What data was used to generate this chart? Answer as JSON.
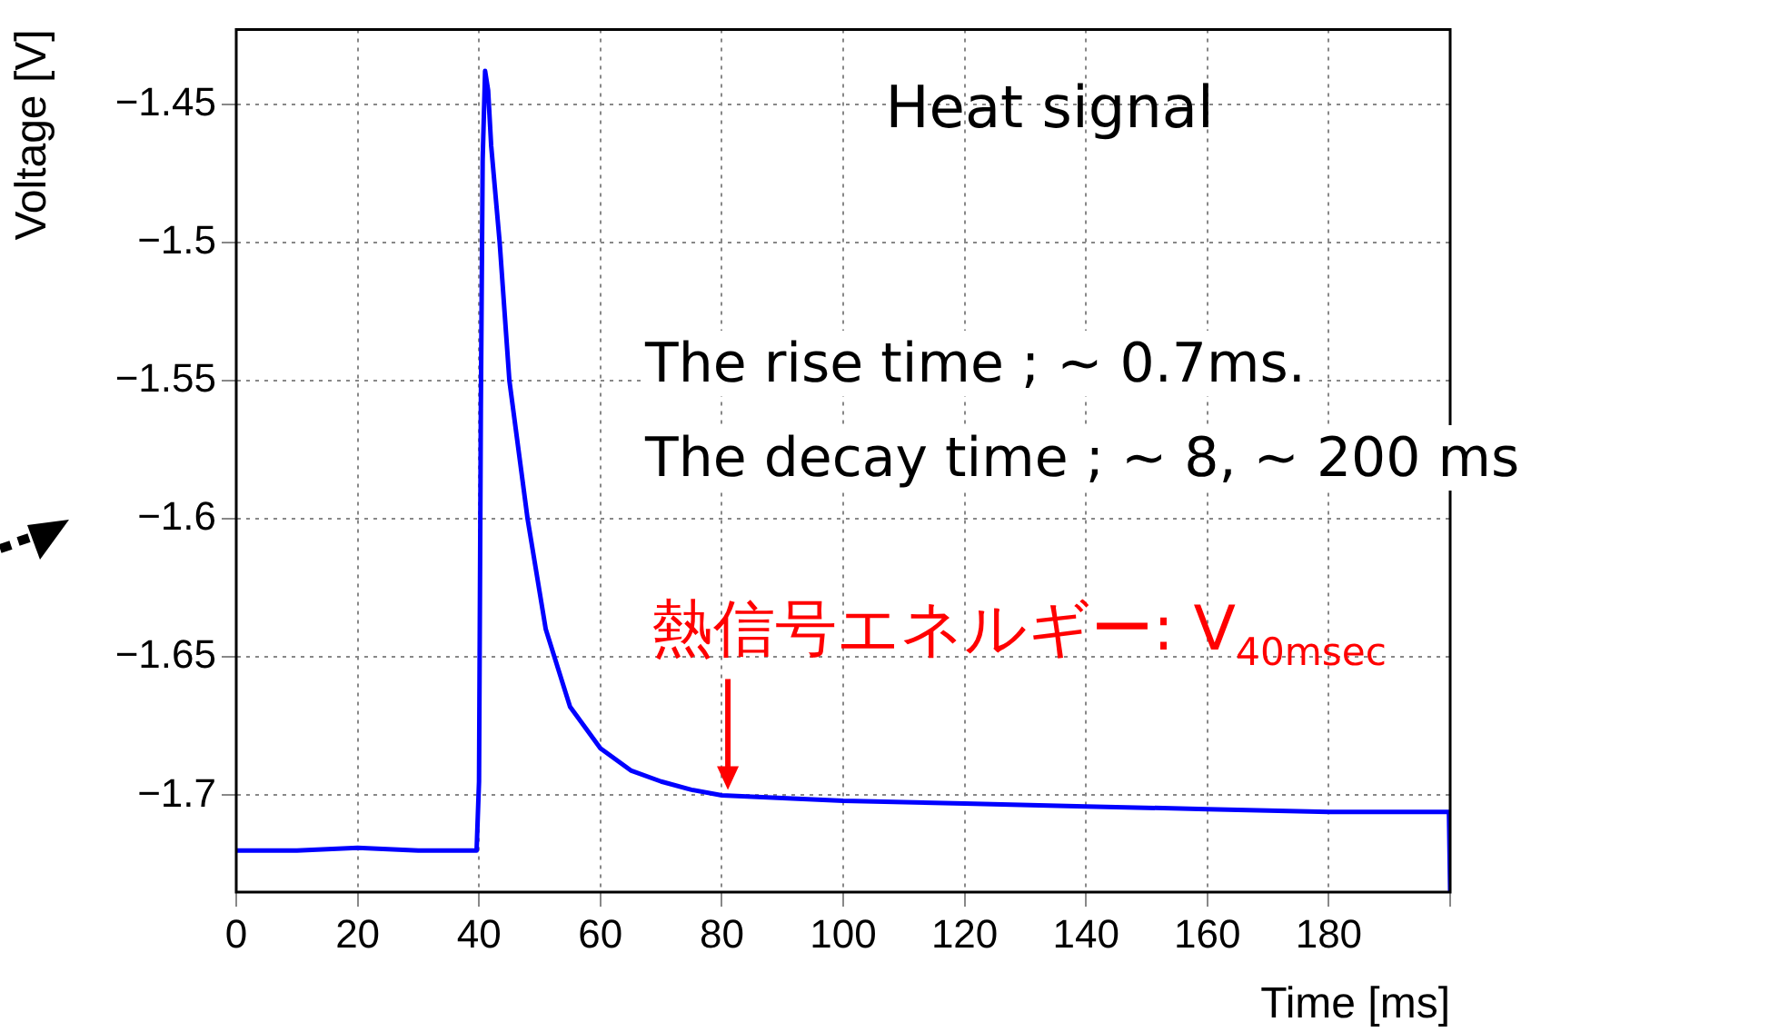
{
  "chart_data": {
    "type": "line",
    "title": "Heat signal",
    "xlabel": "Time [ms]",
    "ylabel": "Voltage [V]",
    "annotations": [
      "The rise time ; ~ 0.7ms.",
      "The decay time ; ~ 8, ~ 200 ms",
      {
        "text": "熱信号エネルギー: V$_{40msec}$",
        "x": 81,
        "y": -1.7
      }
    ],
    "series": [
      {
        "color": "#0000ff",
        "x": [
          0,
          10,
          20,
          30,
          39.6,
          40,
          40.3,
          40.6,
          41,
          41.5,
          42,
          43.4,
          45,
          48,
          51,
          55,
          60,
          65,
          70,
          75,
          80,
          100,
          120,
          140,
          160,
          180,
          199.8,
          200
        ],
        "values": [
          -1.72,
          -1.72,
          -1.719,
          -1.72,
          -1.72,
          -1.695,
          -1.56,
          -1.47,
          -1.438,
          -1.445,
          -1.465,
          -1.5,
          -1.55,
          -1.6,
          -1.64,
          -1.668,
          -1.683,
          -1.691,
          -1.695,
          -1.698,
          -1.7,
          -1.702,
          -1.703,
          -1.704,
          -1.705,
          -1.706,
          -1.706,
          -1.735
        ]
      }
    ],
    "xlim": [
      0,
      200
    ],
    "xticks": [
      0,
      20,
      40,
      60,
      80,
      100,
      120,
      140,
      160,
      180,
      {
        "value": 200,
        "label": null
      }
    ],
    "ylim": [
      -1.735,
      -1.423
    ],
    "yticks": [
      -1.7,
      -1.65,
      -1.6,
      -1.55,
      -1.5,
      -1.45
    ],
    "grid": true,
    "legend": false,
    "marker": "none",
    "line_style": "solid"
  }
}
